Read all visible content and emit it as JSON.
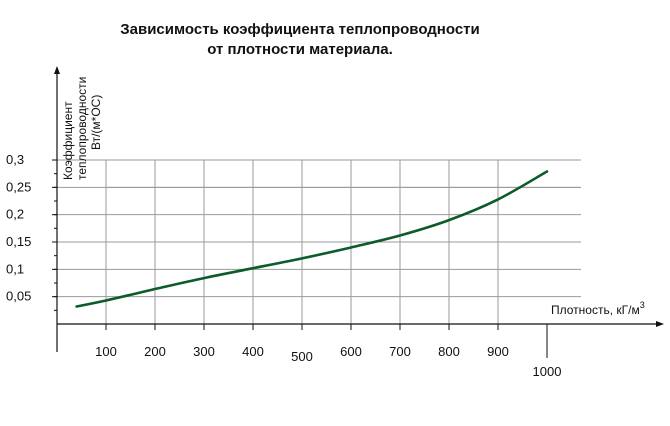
{
  "chart_data": {
    "type": "line",
    "title": "Зависимость коэффициента теплопроводности от плотности материала.",
    "title_lines": [
      "Зависимость коэффициента теплопроводности",
      "от плотности материала."
    ],
    "xlabel": "Плотность, кГ/м",
    "xlabel_sup": "3",
    "ylabel_lines": [
      "Коэффициент",
      "теплопроводности",
      "Вт/(м*ОС)"
    ],
    "x_ticks": [
      "100",
      "200",
      "300",
      "400",
      "500",
      "600",
      "700",
      "800",
      "900",
      "1000"
    ],
    "y_ticks": [
      "0,05",
      "0,1",
      "0,15",
      "0,2",
      "0,25",
      "0,3"
    ],
    "xlim": [
      0,
      1000
    ],
    "ylim": [
      0,
      0.3
    ],
    "grid": true,
    "line_color": "#0d5a2a",
    "series": [
      {
        "x": [
          40,
          100,
          200,
          300,
          400,
          500,
          600,
          700,
          800,
          900,
          1000
        ],
        "y": [
          0.032,
          0.043,
          0.064,
          0.084,
          0.102,
          0.12,
          0.14,
          0.162,
          0.19,
          0.228,
          0.279
        ]
      }
    ]
  }
}
